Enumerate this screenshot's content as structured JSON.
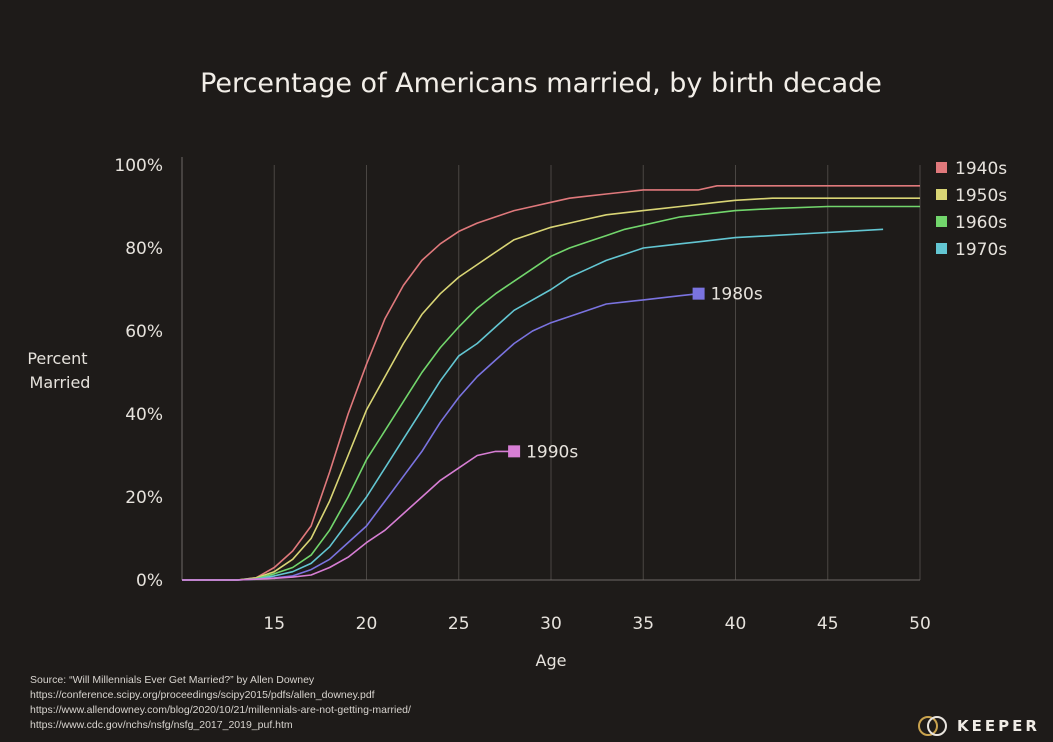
{
  "chart_data": {
    "type": "line",
    "title": "Percentage of Americans married, by birth decade",
    "xlabel": "Age",
    "ylabel": [
      "Percent",
      "Married"
    ],
    "xlim": [
      10,
      50
    ],
    "ylim": [
      0,
      100
    ],
    "xticks": [
      15,
      20,
      25,
      30,
      35,
      40,
      45,
      50
    ],
    "yticks": [
      0,
      20,
      40,
      60,
      80,
      100
    ],
    "ytick_labels": [
      "0%",
      "20%",
      "40%",
      "60%",
      "80%",
      "100%"
    ],
    "grid": "vertical",
    "legend_position": "top-right",
    "series": [
      {
        "name": "1940s",
        "color": "#e0797c",
        "legend": true,
        "x": [
          10,
          13,
          14,
          15,
          16,
          17,
          18,
          19,
          20,
          21,
          22,
          23,
          24,
          25,
          26,
          27,
          28,
          29,
          30,
          31,
          32,
          33,
          34,
          35,
          36,
          37,
          38,
          39,
          40,
          42,
          45,
          50
        ],
        "y": [
          0,
          0,
          0.5,
          3,
          7,
          13,
          26,
          40,
          52,
          63,
          71,
          77,
          81,
          84,
          86,
          87.5,
          89,
          90,
          91,
          92,
          92.5,
          93,
          93.5,
          94,
          94,
          94,
          94,
          95,
          95,
          95,
          95,
          95
        ]
      },
      {
        "name": "1950s",
        "color": "#d9d575",
        "legend": true,
        "x": [
          10,
          13,
          14,
          15,
          16,
          17,
          18,
          19,
          20,
          21,
          22,
          23,
          24,
          25,
          26,
          27,
          28,
          29,
          30,
          31,
          32,
          33,
          34,
          35,
          36,
          37,
          38,
          39,
          40,
          42,
          45,
          50
        ],
        "y": [
          0,
          0,
          0.5,
          2,
          5,
          10,
          19,
          30,
          41,
          49,
          57,
          64,
          69,
          73,
          76,
          79,
          82,
          83.5,
          85,
          86,
          87,
          88,
          88.5,
          89,
          89.5,
          90,
          90.5,
          91,
          91.5,
          92,
          92,
          92
        ]
      },
      {
        "name": "1960s",
        "color": "#72d66c",
        "legend": true,
        "x": [
          10,
          13,
          14,
          15,
          16,
          17,
          18,
          19,
          20,
          21,
          22,
          23,
          24,
          25,
          26,
          27,
          28,
          29,
          30,
          31,
          32,
          33,
          34,
          35,
          36,
          37,
          38,
          39,
          40,
          42,
          45,
          50
        ],
        "y": [
          0,
          0,
          0.3,
          1.5,
          3,
          6,
          12,
          20,
          29,
          36,
          43,
          50,
          56,
          61,
          65.5,
          69,
          72,
          75,
          78,
          80,
          81.5,
          83,
          84.5,
          85.5,
          86.5,
          87.5,
          88,
          88.5,
          89,
          89.5,
          90,
          90
        ]
      },
      {
        "name": "1970s",
        "color": "#63c6d2",
        "legend": true,
        "x": [
          10,
          13,
          14,
          15,
          16,
          17,
          18,
          19,
          20,
          21,
          22,
          23,
          24,
          25,
          26,
          27,
          28,
          29,
          30,
          31,
          32,
          33,
          34,
          35,
          36,
          37,
          38,
          39,
          40,
          42,
          44,
          46,
          48
        ],
        "y": [
          0,
          0,
          0.2,
          1,
          2,
          4,
          8,
          14,
          20,
          27,
          34,
          41,
          48,
          54,
          57,
          61,
          65,
          67.5,
          70,
          73,
          75,
          77,
          78.5,
          80,
          80.5,
          81,
          81.5,
          82,
          82.5,
          83,
          83.5,
          84,
          84.5
        ]
      },
      {
        "name": "1980s",
        "color": "#7a73e0",
        "legend": false,
        "x": [
          10,
          13,
          14,
          15,
          16,
          17,
          18,
          19,
          20,
          21,
          22,
          23,
          24,
          25,
          26,
          27,
          28,
          29,
          30,
          31,
          32,
          33,
          34,
          35,
          36,
          37,
          38
        ],
        "y": [
          0,
          0,
          0.2,
          0.5,
          1,
          2.5,
          5,
          9,
          13,
          19,
          25,
          31,
          38,
          44,
          49,
          53,
          57,
          60,
          62,
          63.5,
          65,
          66.5,
          67,
          67.5,
          68,
          68.5,
          69
        ]
      },
      {
        "name": "1990s",
        "color": "#d77ed4",
        "legend": false,
        "x": [
          10,
          13,
          14,
          15,
          16,
          17,
          18,
          19,
          20,
          21,
          22,
          23,
          24,
          25,
          26,
          27,
          28
        ],
        "y": [
          0,
          0,
          0.2,
          0.4,
          0.7,
          1.2,
          3,
          5.5,
          9,
          12,
          16,
          20,
          24,
          27,
          30,
          31,
          31
        ]
      }
    ]
  },
  "source": {
    "line1": "Source: “Will Millennials Ever Get Married?” by Allen Downey",
    "line2": "https://conference.scipy.org/proceedings/scipy2015/pdfs/allen_downey.pdf",
    "line3": "https://www.allendowney.com/blog/2020/10/21/millennials-are-not-getting-married/",
    "line4": "https://www.cdc.gov/nchs/nsfg/nsfg_2017_2019_puf.htm"
  },
  "brand": {
    "name": "KEEPER",
    "logo_icon": "interlocking-rings-icon"
  },
  "colors": {
    "background": "#1e1b19",
    "text": "#e6e2dc",
    "axis": "#6e6a66",
    "grid": "#4a4643"
  }
}
